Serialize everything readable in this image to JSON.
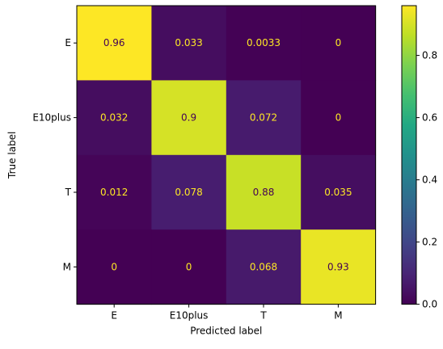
{
  "chart_data": {
    "type": "heatmap",
    "x_categories": [
      "E",
      "E10plus",
      "T",
      "M"
    ],
    "y_categories": [
      "E",
      "E10plus",
      "T",
      "M"
    ],
    "values": [
      [
        0.96,
        0.033,
        0.0033,
        0
      ],
      [
        0.032,
        0.9,
        0.072,
        0
      ],
      [
        0.012,
        0.078,
        0.88,
        0.035
      ],
      [
        0,
        0,
        0.068,
        0.93
      ]
    ],
    "cell_labels": [
      [
        "0.96",
        "0.033",
        "0.0033",
        "0"
      ],
      [
        "0.032",
        "0.9",
        "0.072",
        "0"
      ],
      [
        "0.012",
        "0.078",
        "0.88",
        "0.035"
      ],
      [
        "0",
        "0",
        "0.068",
        "0.93"
      ]
    ],
    "xlabel": "Predicted label",
    "ylabel": "True label",
    "colormap": "viridis",
    "colorbar": {
      "range": [
        0,
        0.96
      ],
      "ticks": [
        0.0,
        0.2,
        0.4,
        0.6,
        0.8
      ],
      "tick_labels": [
        "0.0",
        "0.2",
        "0.4",
        "0.6",
        "0.8"
      ]
    },
    "text_colors": {
      "on_dark": "#fde725",
      "on_light": "#440154"
    }
  }
}
